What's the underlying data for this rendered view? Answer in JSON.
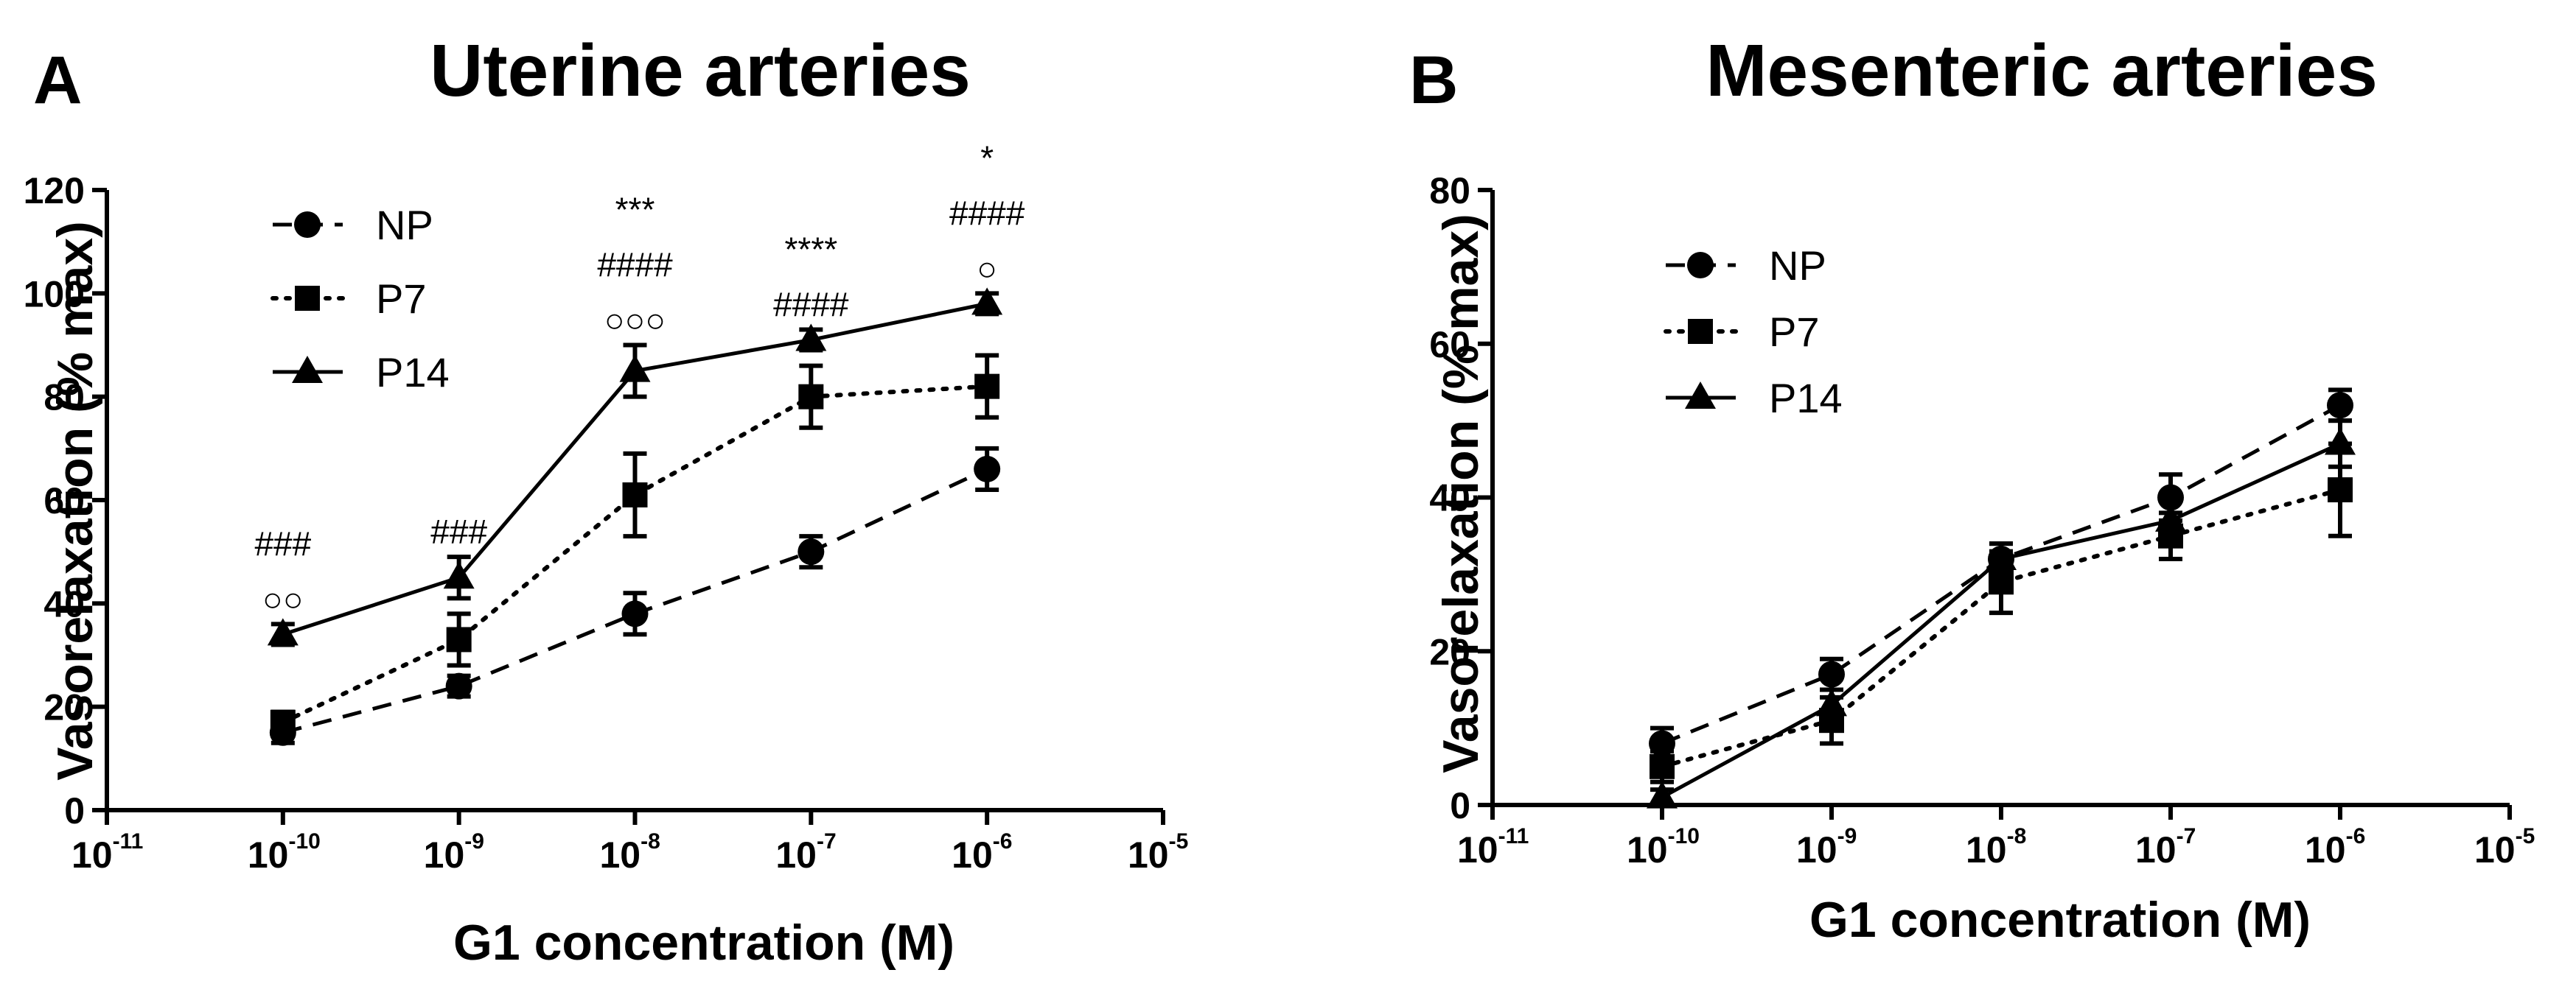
{
  "chart_data": [
    {
      "type": "line",
      "panel_label": "A",
      "title": "Uterine arteries",
      "xlabel": "G1 concentration (M)",
      "ylabel": "Vasorelaxation  (% max)",
      "x_scale": "log10",
      "xlim_exponent": [
        -11,
        -5
      ],
      "x_ticks": [
        {
          "base": "10",
          "exp": "-11"
        },
        {
          "base": "10",
          "exp": "-10"
        },
        {
          "base": "10",
          "exp": "-9"
        },
        {
          "base": "10",
          "exp": "-8"
        },
        {
          "base": "10",
          "exp": "-7"
        },
        {
          "base": "10",
          "exp": "-6"
        },
        {
          "base": "10",
          "exp": "-5"
        }
      ],
      "ylim": [
        0,
        120
      ],
      "y_ticks": [
        "0",
        "20",
        "40",
        "60",
        "80",
        "100",
        "120"
      ],
      "legend_position": "top-left",
      "series": [
        {
          "name": "NP",
          "style": "dashed",
          "marker": "circle",
          "x_exponent": [
            -10,
            -9,
            -8,
            -7,
            -6
          ],
          "values": [
            15,
            24,
            38,
            50,
            66
          ],
          "error": [
            2,
            2,
            4,
            3,
            4
          ]
        },
        {
          "name": "P7",
          "style": "dotted",
          "marker": "square",
          "x_exponent": [
            -10,
            -9,
            -8,
            -7,
            -6
          ],
          "values": [
            17,
            33,
            61,
            80,
            82
          ],
          "error": [
            2,
            5,
            8,
            6,
            6
          ]
        },
        {
          "name": "P14",
          "style": "solid",
          "marker": "triangle",
          "x_exponent": [
            -10,
            -9,
            -8,
            -7,
            -6
          ],
          "values": [
            34,
            45,
            85,
            91,
            98
          ],
          "error": [
            2,
            4,
            5,
            2,
            2
          ]
        }
      ],
      "annotations": [
        {
          "x_exponent": -10,
          "lines": [
            "###",
            "○○"
          ]
        },
        {
          "x_exponent": -9,
          "lines": [
            "###"
          ]
        },
        {
          "x_exponent": -8,
          "lines": [
            "***",
            "####",
            "○○○"
          ]
        },
        {
          "x_exponent": -7,
          "lines": [
            "****",
            "####"
          ]
        },
        {
          "x_exponent": -6,
          "lines": [
            "*",
            "####",
            "○"
          ]
        }
      ]
    },
    {
      "type": "line",
      "panel_label": "B",
      "title": "Mesenteric arteries",
      "xlabel": "G1 concentration (M)",
      "ylabel": "Vasorelaxation (% max)",
      "x_scale": "log10",
      "xlim_exponent": [
        -11,
        -5
      ],
      "x_ticks": [
        {
          "base": "10",
          "exp": "-11"
        },
        {
          "base": "10",
          "exp": "-10"
        },
        {
          "base": "10",
          "exp": "-9"
        },
        {
          "base": "10",
          "exp": "-8"
        },
        {
          "base": "10",
          "exp": "-7"
        },
        {
          "base": "10",
          "exp": "-6"
        },
        {
          "base": "10",
          "exp": "-5"
        }
      ],
      "ylim": [
        0,
        80
      ],
      "y_ticks": [
        "0",
        "20",
        "40",
        "60",
        "80"
      ],
      "legend_position": "top-left",
      "series": [
        {
          "name": "NP",
          "style": "dashed",
          "marker": "circle",
          "x_exponent": [
            -10,
            -9,
            -8,
            -7,
            -6
          ],
          "values": [
            8,
            17,
            32,
            40,
            52
          ],
          "error": [
            2,
            2,
            2,
            3,
            2
          ]
        },
        {
          "name": "P7",
          "style": "dotted",
          "marker": "square",
          "x_exponent": [
            -10,
            -9,
            -8,
            -7,
            -6
          ],
          "values": [
            5,
            11,
            29,
            35,
            41
          ],
          "error": [
            2,
            3,
            4,
            3,
            6
          ]
        },
        {
          "name": "P14",
          "style": "solid",
          "marker": "triangle",
          "x_exponent": [
            -10,
            -9,
            -8,
            -7,
            -6
          ],
          "values": [
            1,
            13,
            32,
            37,
            47
          ],
          "error": [
            1,
            2,
            2,
            3,
            3
          ]
        }
      ],
      "annotations": []
    }
  ]
}
